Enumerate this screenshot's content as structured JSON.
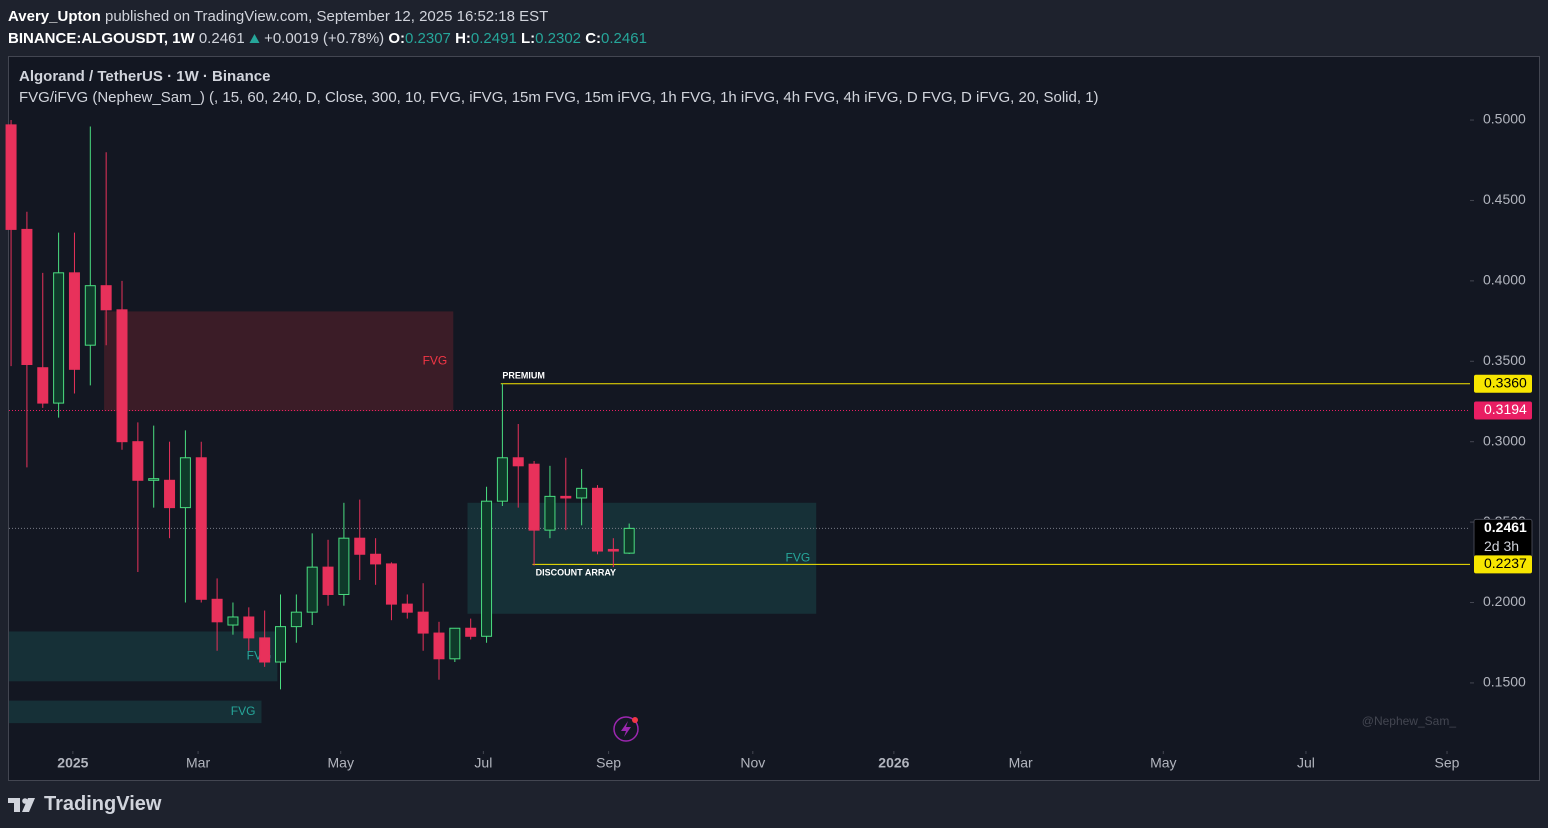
{
  "header": {
    "author": "Avery_Upton",
    "published": "published on TradingView.com, September 12, 2025 16:52:18 EST",
    "symbol": "BINANCE:ALGOUSDT, 1W",
    "last": "0.2461",
    "change": "+0.0019 (+0.78%)",
    "ohlc": [
      {
        "label": "O:",
        "value": "0.2307"
      },
      {
        "label": "H:",
        "value": "0.2491"
      },
      {
        "label": "L:",
        "value": "0.2302"
      },
      {
        "label": "C:",
        "value": "0.2461"
      }
    ]
  },
  "footer": {
    "brand": "TradingView"
  },
  "chart_data": {
    "type": "candlestick",
    "title": "Algorand / TetherUS · 1W · Binance",
    "subtitle": "FVG/iFVG (Nephew_Sam_) (, 15, 60, 240, D, Close, 300, 10, FVG, iFVG, 15m FVG, 15m iFVG, 1h FVG, 1h iFVG, 4h FVG, 4h iFVG, D FVG, D iFVG, 20, Solid, 1)",
    "open": [
      0.497,
      0.432,
      0.346,
      0.324,
      0.405,
      0.36,
      0.397,
      0.382,
      0.3,
      0.276,
      0.276,
      0.259,
      0.29,
      0.202,
      0.186,
      0.191,
      0.178,
      0.163,
      0.185,
      0.194,
      0.222,
      0.205,
      0.24,
      0.23,
      0.224,
      0.199,
      0.194,
      0.181,
      0.165,
      0.184,
      0.179,
      0.263,
      0.29,
      0.286,
      0.245,
      0.266,
      0.265,
      0.271,
      0.233,
      0.2307
    ],
    "high": [
      0.5,
      0.443,
      0.405,
      0.43,
      0.43,
      0.496,
      0.48,
      0.4,
      0.312,
      0.31,
      0.3,
      0.307,
      0.3,
      0.215,
      0.2,
      0.197,
      0.195,
      0.205,
      0.205,
      0.243,
      0.239,
      0.262,
      0.264,
      0.24,
      0.225,
      0.205,
      0.212,
      0.188,
      0.184,
      0.19,
      0.272,
      0.336,
      0.311,
      0.288,
      0.285,
      0.29,
      0.283,
      0.273,
      0.24,
      0.2491
    ],
    "low": [
      0.347,
      0.284,
      0.321,
      0.315,
      0.33,
      0.335,
      0.36,
      0.295,
      0.219,
      0.259,
      0.24,
      0.2,
      0.2,
      0.17,
      0.18,
      0.17,
      0.16,
      0.146,
      0.175,
      0.186,
      0.198,
      0.198,
      0.214,
      0.211,
      0.189,
      0.19,
      0.17,
      0.152,
      0.163,
      0.177,
      0.175,
      0.26,
      0.259,
      0.223,
      0.24,
      0.245,
      0.248,
      0.23,
      0.222,
      0.2302
    ],
    "close": [
      0.432,
      0.348,
      0.324,
      0.405,
      0.345,
      0.397,
      0.382,
      0.3,
      0.276,
      0.277,
      0.259,
      0.29,
      0.202,
      0.188,
      0.191,
      0.178,
      0.163,
      0.185,
      0.194,
      0.222,
      0.205,
      0.24,
      0.23,
      0.224,
      0.199,
      0.194,
      0.181,
      0.165,
      0.184,
      0.179,
      0.263,
      0.29,
      0.285,
      0.245,
      0.266,
      0.265,
      0.271,
      0.232,
      0.232,
      0.2461
    ],
    "up_color": "#4ade80",
    "down_color": "#e8315b",
    "ylim": [
      0.1114,
      0.5392
    ],
    "yticks": [
      {
        "value": 0.5,
        "label": "0.5000"
      },
      {
        "value": 0.45,
        "label": "0.4500"
      },
      {
        "value": 0.4,
        "label": "0.4000"
      },
      {
        "value": 0.35,
        "label": "0.3500"
      },
      {
        "value": 0.3,
        "label": "0.3000"
      },
      {
        "value": 0.25,
        "label": "0.2500"
      },
      {
        "value": 0.2,
        "label": "0.2000"
      },
      {
        "value": 0.15,
        "label": "0.1500"
      }
    ],
    "xlim": [
      -0.13,
      92.05
    ],
    "xticks": [
      {
        "value": 3.9,
        "label": "2025"
      },
      {
        "value": 11.8,
        "label": "Mar"
      },
      {
        "value": 20.8,
        "label": "May"
      },
      {
        "value": 29.8,
        "label": "Jul"
      },
      {
        "value": 37.7,
        "label": "Sep"
      },
      {
        "value": 46.8,
        "label": "Nov"
      },
      {
        "value": 55.7,
        "label": "2026"
      },
      {
        "value": 63.7,
        "label": "Mar"
      },
      {
        "value": 72.7,
        "label": "May"
      },
      {
        "value": 81.7,
        "label": "Jul"
      },
      {
        "value": 90.6,
        "label": "Sep"
      }
    ],
    "price_lines": [
      {
        "value": 0.336,
        "label": "0.3360",
        "color": "#f7e600",
        "start": 30.9,
        "style": "solid"
      },
      {
        "value": 0.3194,
        "label": "0.3194",
        "color": "#e91e63",
        "start": -0.13,
        "style": "dotted"
      },
      {
        "value": 0.2461,
        "label": "0.2461",
        "sublabel": "2d 3h",
        "color": "#000000",
        "start": -0.13,
        "style": "dotted"
      },
      {
        "value": 0.2237,
        "label": "0.2237",
        "color": "#f7e600",
        "start": 32.9,
        "style": "solid"
      }
    ],
    "zones": [
      {
        "label": "FVG",
        "top": 0.381,
        "bottom": 0.319,
        "start": 5.87,
        "end": 27.9,
        "color": "#f23645"
      },
      {
        "label": "FVG",
        "top": 0.262,
        "bottom": 0.193,
        "start": 28.8,
        "end": 50.8,
        "color": "#26a69a"
      },
      {
        "label": "FVG",
        "top": 0.182,
        "bottom": 0.151,
        "start": -0.13,
        "end": 16.8,
        "color": "#26a69a"
      },
      {
        "label": "FVG",
        "top": 0.139,
        "bottom": 0.125,
        "start": -0.13,
        "end": 15.8,
        "color": "#26a69a"
      }
    ],
    "annotations": [
      {
        "text": "PREMIUM",
        "x": 31.0,
        "y": 0.3408
      },
      {
        "text": "DISCOUNT ARRAY",
        "x": 33.1,
        "y": 0.2184
      }
    ],
    "watermark": "@Nephew_Sam_"
  }
}
